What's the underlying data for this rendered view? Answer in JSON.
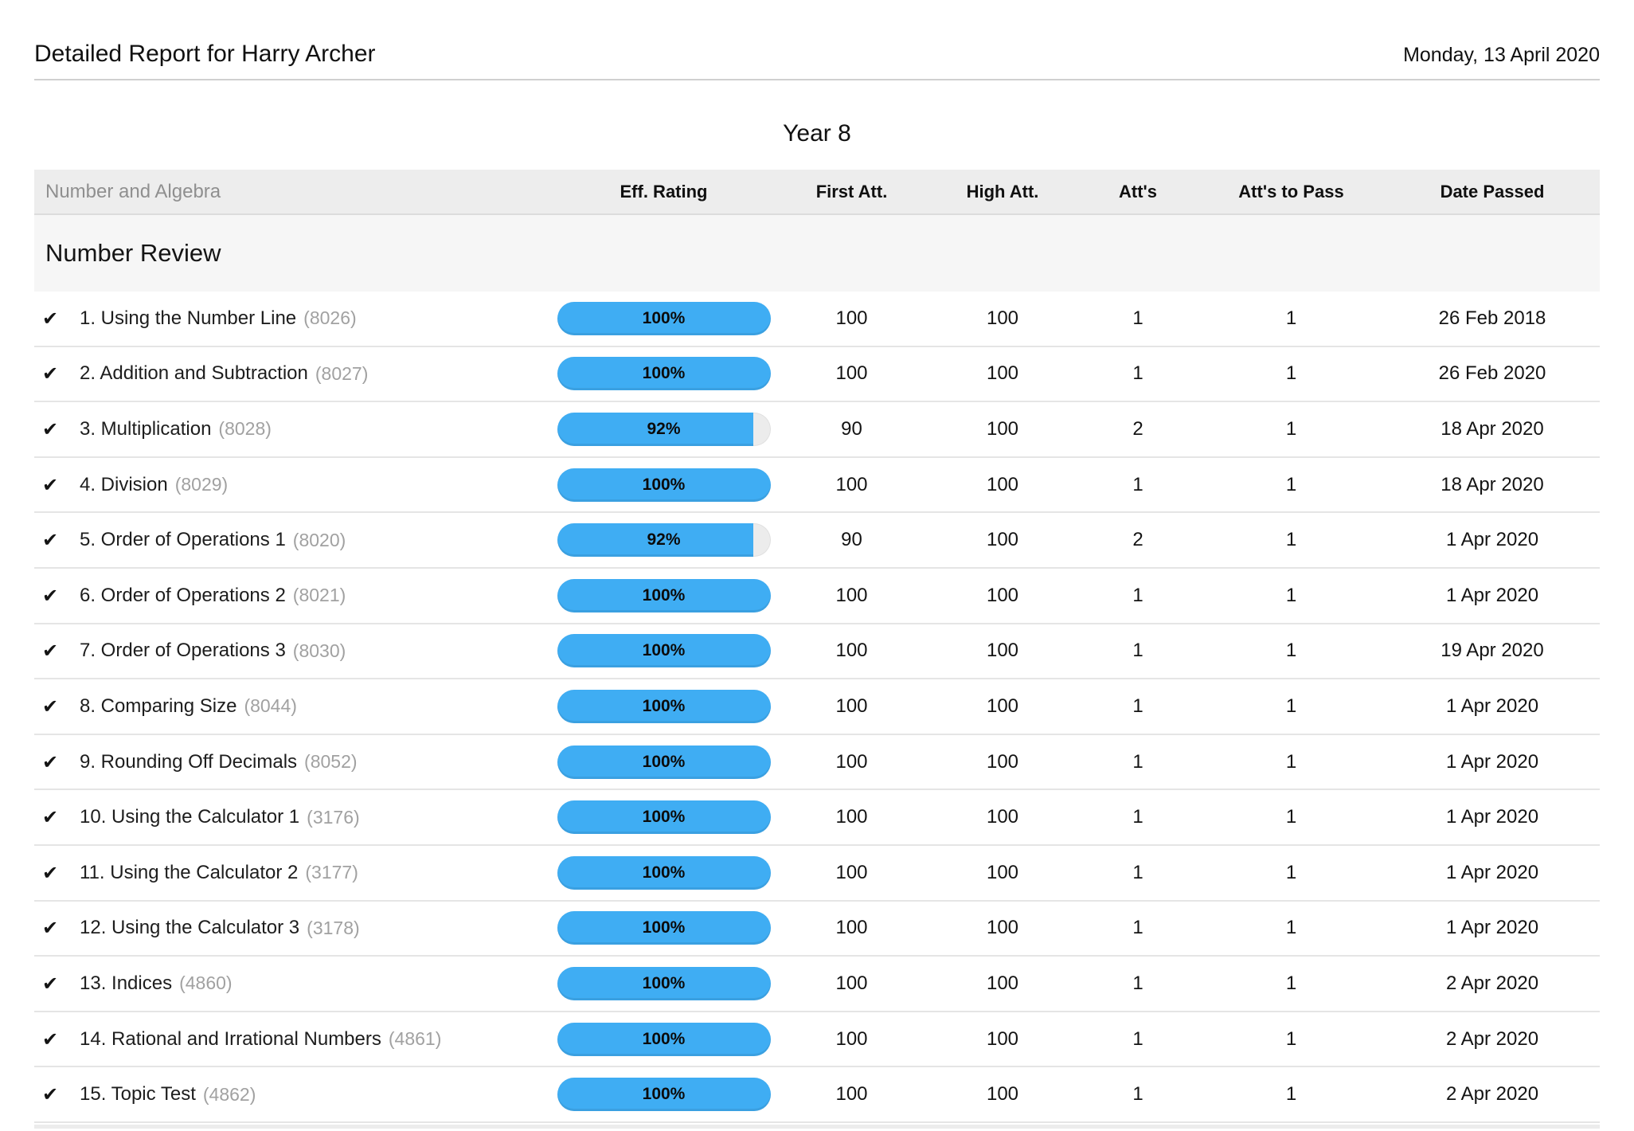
{
  "report": {
    "title": "Detailed Report for Harry Archer",
    "date": "Monday, 13 April 2020",
    "year": "Year 8"
  },
  "table": {
    "strand_header": "Number and Algebra",
    "columns": {
      "eff_rating": "Eff. Rating",
      "first_att": "First Att.",
      "high_att": "High Att.",
      "atts": "Att's",
      "atts_to_pass": "Att's to Pass",
      "date_passed": "Date Passed"
    },
    "section_title": "Number Review",
    "rows": [
      {
        "name": "1. Using the Number Line",
        "code": "(8026)",
        "eff_rating_percent": 100,
        "eff_rating_label": "100%",
        "first_att": "100",
        "high_att": "100",
        "atts": "1",
        "atts_to_pass": "1",
        "date_passed": "26 Feb 2018"
      },
      {
        "name": "2. Addition and Subtraction",
        "code": "(8027)",
        "eff_rating_percent": 100,
        "eff_rating_label": "100%",
        "first_att": "100",
        "high_att": "100",
        "atts": "1",
        "atts_to_pass": "1",
        "date_passed": "26 Feb 2020"
      },
      {
        "name": "3. Multiplication",
        "code": "(8028)",
        "eff_rating_percent": 92,
        "eff_rating_label": "92%",
        "first_att": "90",
        "high_att": "100",
        "atts": "2",
        "atts_to_pass": "1",
        "date_passed": "18 Apr 2020"
      },
      {
        "name": "4. Division",
        "code": "(8029)",
        "eff_rating_percent": 100,
        "eff_rating_label": "100%",
        "first_att": "100",
        "high_att": "100",
        "atts": "1",
        "atts_to_pass": "1",
        "date_passed": "18 Apr 2020"
      },
      {
        "name": "5. Order of Operations 1",
        "code": "(8020)",
        "eff_rating_percent": 92,
        "eff_rating_label": "92%",
        "first_att": "90",
        "high_att": "100",
        "atts": "2",
        "atts_to_pass": "1",
        "date_passed": "1 Apr 2020"
      },
      {
        "name": "6. Order of Operations 2",
        "code": "(8021)",
        "eff_rating_percent": 100,
        "eff_rating_label": "100%",
        "first_att": "100",
        "high_att": "100",
        "atts": "1",
        "atts_to_pass": "1",
        "date_passed": "1 Apr 2020"
      },
      {
        "name": "7. Order of Operations 3",
        "code": "(8030)",
        "eff_rating_percent": 100,
        "eff_rating_label": "100%",
        "first_att": "100",
        "high_att": "100",
        "atts": "1",
        "atts_to_pass": "1",
        "date_passed": "19 Apr 2020"
      },
      {
        "name": "8. Comparing Size",
        "code": "(8044)",
        "eff_rating_percent": 100,
        "eff_rating_label": "100%",
        "first_att": "100",
        "high_att": "100",
        "atts": "1",
        "atts_to_pass": "1",
        "date_passed": "1 Apr 2020"
      },
      {
        "name": "9. Rounding Off Decimals",
        "code": "(8052)",
        "eff_rating_percent": 100,
        "eff_rating_label": "100%",
        "first_att": "100",
        "high_att": "100",
        "atts": "1",
        "atts_to_pass": "1",
        "date_passed": "1 Apr 2020"
      },
      {
        "name": "10. Using the Calculator 1",
        "code": "(3176)",
        "eff_rating_percent": 100,
        "eff_rating_label": "100%",
        "first_att": "100",
        "high_att": "100",
        "atts": "1",
        "atts_to_pass": "1",
        "date_passed": "1 Apr 2020"
      },
      {
        "name": "11. Using the Calculator 2",
        "code": "(3177)",
        "eff_rating_percent": 100,
        "eff_rating_label": "100%",
        "first_att": "100",
        "high_att": "100",
        "atts": "1",
        "atts_to_pass": "1",
        "date_passed": "1 Apr 2020"
      },
      {
        "name": "12. Using the Calculator 3",
        "code": "(3178)",
        "eff_rating_percent": 100,
        "eff_rating_label": "100%",
        "first_att": "100",
        "high_att": "100",
        "atts": "1",
        "atts_to_pass": "1",
        "date_passed": "1 Apr 2020"
      },
      {
        "name": "13. Indices",
        "code": "(4860)",
        "eff_rating_percent": 100,
        "eff_rating_label": "100%",
        "first_att": "100",
        "high_att": "100",
        "atts": "1",
        "atts_to_pass": "1",
        "date_passed": "2 Apr 2020"
      },
      {
        "name": "14. Rational and Irrational Numbers",
        "code": "(4861)",
        "eff_rating_percent": 100,
        "eff_rating_label": "100%",
        "first_att": "100",
        "high_att": "100",
        "atts": "1",
        "atts_to_pass": "1",
        "date_passed": "2 Apr 2020"
      },
      {
        "name": "15. Topic Test",
        "code": "(4862)",
        "eff_rating_percent": 100,
        "eff_rating_label": "100%",
        "first_att": "100",
        "high_att": "100",
        "atts": "1",
        "atts_to_pass": "1",
        "date_passed": "2 Apr 2020"
      }
    ]
  },
  "icons": {
    "completed_check": "✔"
  },
  "colors": {
    "bar_fill": "#3fadf3",
    "bar_track": "#ececec"
  }
}
